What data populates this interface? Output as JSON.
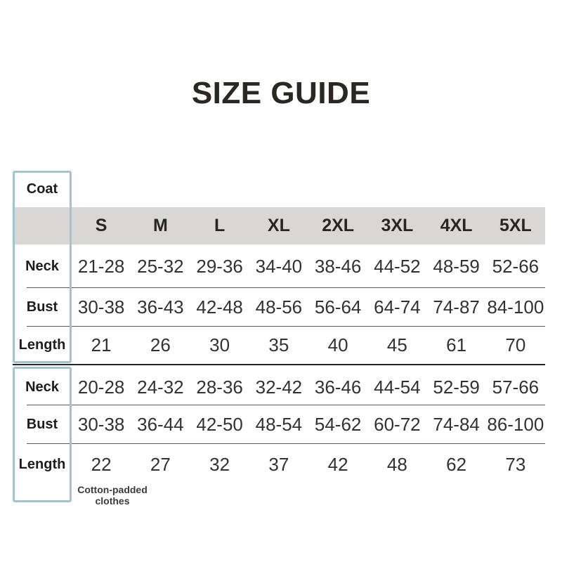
{
  "page": {
    "title": "SIZE GUIDE"
  },
  "colors": {
    "header_band_bg": "#d8d7d5",
    "outline_blue": "#a2c3d2",
    "row_divider": "#58595b",
    "section_divider": "#262626",
    "text": "#2b2824"
  },
  "table": {
    "corner_label": "Coat",
    "sizes": [
      "S",
      "M",
      "L",
      "XL",
      "2XL",
      "3XL",
      "4XL",
      "5XL"
    ],
    "sections": [
      {
        "name": "Coat",
        "rows": [
          {
            "label": "Neck",
            "values": [
              "21-28",
              "25-32",
              "29-36",
              "34-40",
              "38-46",
              "44-52",
              "48-59",
              "52-66"
            ]
          },
          {
            "label": "Bust",
            "values": [
              "30-38",
              "36-43",
              "42-48",
              "48-56",
              "56-64",
              "64-74",
              "74-87",
              "84-100"
            ]
          },
          {
            "label": "Length",
            "values": [
              "21",
              "26",
              "30",
              "35",
              "40",
              "45",
              "61",
              "70"
            ]
          }
        ]
      },
      {
        "name": "Cotton-padded clothes",
        "footnote": "Cotton-padded clothes",
        "rows": [
          {
            "label": "Neck",
            "values": [
              "20-28",
              "24-32",
              "28-36",
              "32-42",
              "36-46",
              "44-54",
              "52-59",
              "57-66"
            ]
          },
          {
            "label": "Bust",
            "values": [
              "30-38",
              "36-44",
              "42-50",
              "48-54",
              "54-62",
              "60-72",
              "74-84",
              "86-100"
            ]
          },
          {
            "label": "Length",
            "values": [
              "22",
              "27",
              "32",
              "37",
              "42",
              "48",
              "62",
              "73"
            ]
          }
        ]
      }
    ]
  }
}
